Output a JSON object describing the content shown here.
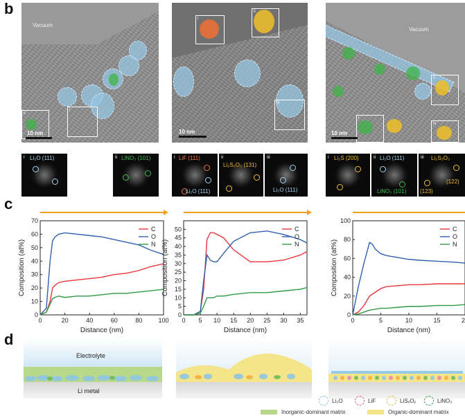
{
  "panel_b": {
    "letter": "b",
    "images": [
      {
        "vacuum_label": "Vacuum",
        "scale_label": "10 nm",
        "box_labels": [
          "ii",
          "i"
        ]
      },
      {
        "scale_label": "10 nm",
        "box_labels": [
          "i",
          "ii",
          "iii"
        ]
      },
      {
        "vacuum_label": "Vacuum",
        "scale_label": "10 nm",
        "box_labels": [
          "ii",
          "iii",
          "i"
        ]
      }
    ],
    "ffts": [
      {
        "roman": "i",
        "labels": [
          {
            "text": "Li₂O (111)",
            "color": "#9fd3ee"
          }
        ]
      },
      {
        "roman": "ii",
        "labels": [
          {
            "text": "LiNO₃ (101)",
            "color": "#3fbf4a"
          }
        ]
      },
      {
        "roman": "i",
        "labels": [
          {
            "text": "LiF (111)",
            "color": "#f07840"
          },
          {
            "text": "Li₂O (111)",
            "color": "#9fd3ee"
          }
        ]
      },
      {
        "roman": "ii",
        "labels": [
          {
            "text": "Li₂S₂O₃ (131)",
            "color": "#f0be30"
          }
        ]
      },
      {
        "roman": "iii",
        "labels": [
          {
            "text": "Li₂O (111)",
            "color": "#9fd3ee"
          }
        ]
      },
      {
        "roman": "i",
        "labels": [
          {
            "text": "Li₂S (200)",
            "color": "#f0be30"
          }
        ]
      },
      {
        "roman": "ii",
        "labels": [
          {
            "text": "Li₂O (111)",
            "color": "#9fd3ee"
          },
          {
            "text": "LiNO₃ (101)",
            "color": "#3fbf4a"
          }
        ]
      },
      {
        "roman": "iii",
        "labels": [
          {
            "text": "Li₂S₂O₃",
            "color": "#f0be30"
          },
          {
            "text": "(122)",
            "color": "#f0be30"
          },
          {
            "text": "(123)",
            "color": "#f0be30"
          }
        ]
      }
    ]
  },
  "panel_c": {
    "letter": "c"
  },
  "chart_data": [
    {
      "type": "line",
      "xlabel": "Distance (nm)",
      "ylabel": "Composition (at%)",
      "xlim": [
        0,
        100
      ],
      "ylim": [
        0,
        70
      ],
      "xticks": [
        0,
        20,
        40,
        60,
        80,
        100
      ],
      "yticks": [
        0,
        10,
        20,
        30,
        40,
        50,
        60,
        70
      ],
      "legend_position": "top-right",
      "series": [
        {
          "name": "C",
          "color": "#e8343a",
          "x": [
            0,
            5,
            8,
            10,
            12,
            15,
            20,
            30,
            40,
            50,
            60,
            70,
            80,
            90,
            100
          ],
          "y": [
            0,
            2,
            10,
            20,
            22,
            24,
            25,
            26,
            27,
            28,
            30,
            31,
            33,
            36,
            38
          ]
        },
        {
          "name": "O",
          "color": "#2f5fb0",
          "x": [
            0,
            5,
            8,
            10,
            12,
            15,
            20,
            30,
            40,
            50,
            60,
            70,
            80,
            90,
            100
          ],
          "y": [
            0,
            5,
            40,
            55,
            58,
            60,
            61,
            60,
            59,
            58,
            56,
            54,
            52,
            48,
            45
          ]
        },
        {
          "name": "N",
          "color": "#2e9a45",
          "x": [
            0,
            5,
            8,
            10,
            12,
            15,
            20,
            30,
            40,
            50,
            60,
            70,
            80,
            90,
            100
          ],
          "y": [
            0,
            2,
            8,
            12,
            13,
            14,
            13,
            14,
            14,
            15,
            16,
            16,
            17,
            18,
            19
          ]
        }
      ]
    },
    {
      "type": "line",
      "xlabel": "Distance (nm)",
      "ylabel": "Composition (at%)",
      "xlim": [
        0,
        37
      ],
      "ylim": [
        0,
        55
      ],
      "xticks": [
        0,
        5,
        10,
        15,
        20,
        25,
        30,
        35
      ],
      "yticks": [
        0,
        5,
        10,
        15,
        20,
        25,
        30,
        35,
        40,
        45,
        50
      ],
      "legend_position": "top-right",
      "series": [
        {
          "name": "C",
          "color": "#e8343a",
          "x": [
            0,
            3,
            5,
            6,
            7,
            8,
            9,
            10,
            12,
            15,
            20,
            25,
            30,
            35,
            37
          ],
          "y": [
            0,
            0,
            2,
            15,
            44,
            48,
            48,
            47,
            45,
            38,
            31,
            31,
            32,
            35,
            37
          ]
        },
        {
          "name": "O",
          "color": "#2f5fb0",
          "x": [
            0,
            3,
            5,
            6,
            7,
            8,
            9,
            10,
            12,
            15,
            20,
            25,
            30,
            35,
            37
          ],
          "y": [
            0,
            0,
            2,
            20,
            35,
            32,
            31,
            31,
            36,
            43,
            48,
            49,
            47,
            44,
            42
          ]
        },
        {
          "name": "N",
          "color": "#2e9a45",
          "x": [
            0,
            3,
            5,
            6,
            7,
            8,
            9,
            10,
            12,
            15,
            20,
            25,
            30,
            35,
            37
          ],
          "y": [
            0,
            0,
            1,
            5,
            10,
            10,
            10,
            11,
            11,
            12,
            13,
            13,
            14,
            15,
            16
          ]
        }
      ]
    },
    {
      "type": "line",
      "xlabel": "Distance (nm)",
      "ylabel": "Composition (at%)",
      "xlim": [
        0,
        20
      ],
      "ylim": [
        0,
        100
      ],
      "xticks": [
        0,
        5,
        10,
        15,
        20
      ],
      "yticks": [
        0,
        20,
        40,
        60,
        80,
        100
      ],
      "legend_position": "top-right",
      "series": [
        {
          "name": "C",
          "color": "#e8343a",
          "x": [
            0,
            1,
            2,
            3,
            4,
            5,
            6,
            8,
            10,
            12,
            15,
            18,
            20
          ],
          "y": [
            0,
            3,
            10,
            20,
            24,
            28,
            30,
            31,
            32,
            32,
            33,
            33,
            33
          ]
        },
        {
          "name": "O",
          "color": "#2f5fb0",
          "x": [
            0,
            1,
            2,
            3,
            3.5,
            4,
            5,
            6,
            8,
            10,
            12,
            15,
            18,
            20
          ],
          "y": [
            0,
            30,
            55,
            77,
            75,
            70,
            65,
            63,
            61,
            59,
            58,
            57,
            56,
            55
          ]
        },
        {
          "name": "N",
          "color": "#2e9a45",
          "x": [
            0,
            1,
            2,
            3,
            4,
            5,
            6,
            8,
            10,
            12,
            15,
            18,
            20
          ],
          "y": [
            0,
            1,
            3,
            5,
            6,
            7,
            7,
            8,
            9,
            9,
            10,
            10,
            11
          ]
        }
      ]
    }
  ],
  "panel_d": {
    "letter": "d",
    "electrolyte_label": "Electrolyte",
    "li_metal_label": "Li metal",
    "legend": {
      "species": [
        {
          "text": "Li₂O",
          "color": "#7fbfe0"
        },
        {
          "text": "LiF",
          "color": "#e85a8a"
        },
        {
          "text": "LiSₓOᵧ",
          "color": "#f0b040"
        },
        {
          "text": "LiNO₃",
          "color": "#3f9f4a"
        }
      ],
      "matrices": [
        {
          "text": "Inorganic-dominant matrix",
          "color": "#b9d98a"
        },
        {
          "text": "Organic-dominant matrix",
          "color": "#f4e48a"
        }
      ]
    }
  }
}
